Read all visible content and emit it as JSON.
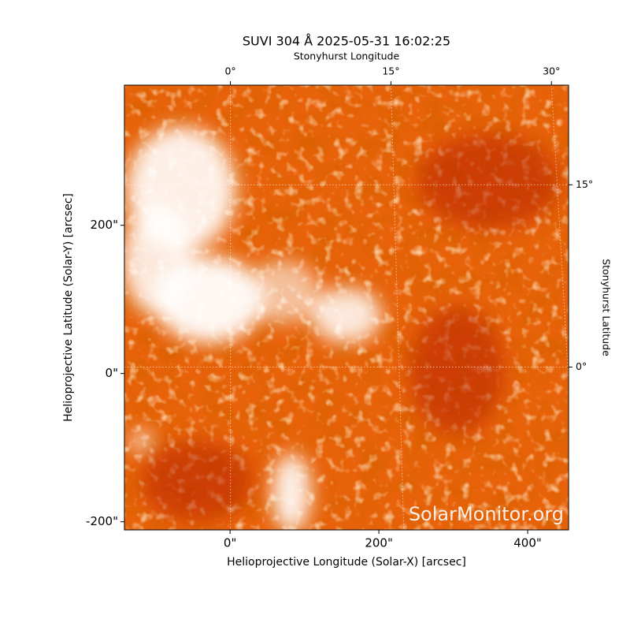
{
  "chart_data": {
    "type": "image",
    "title": "SUVI 304 Å 2025-05-31 16:02:25",
    "xlabel": "Helioprojective Longitude (Solar-X) [arcsec]",
    "ylabel": "Helioprojective Latitude (Solar-Y) [arcsec]",
    "x2label": "Stonyhurst Longitude",
    "y2label": "Stonyhurst Latitude",
    "xlim": [
      -142,
      455
    ],
    "ylim": [
      -211,
      389
    ],
    "xticks": [
      {
        "value": 0,
        "label": "0\""
      },
      {
        "value": 200,
        "label": "200\""
      },
      {
        "value": 400,
        "label": "400\""
      }
    ],
    "yticks": [
      {
        "value": -200,
        "label": "-200\""
      },
      {
        "value": 0,
        "label": "0\""
      },
      {
        "value": 200,
        "label": "200\""
      }
    ],
    "x2lim": [
      -9.9,
      31.6
    ],
    "x2ticks": [
      {
        "value": 0,
        "label": "0°"
      },
      {
        "value": 15,
        "label": "15°"
      },
      {
        "value": 30,
        "label": "30°"
      }
    ],
    "y2lim": [
      -13.4,
      23.2
    ],
    "y2ticks": [
      {
        "value": 0,
        "label": "0°"
      },
      {
        "value": 15,
        "label": "15°"
      }
    ],
    "grid": true,
    "watermark": "SolarMonitor.org"
  }
}
